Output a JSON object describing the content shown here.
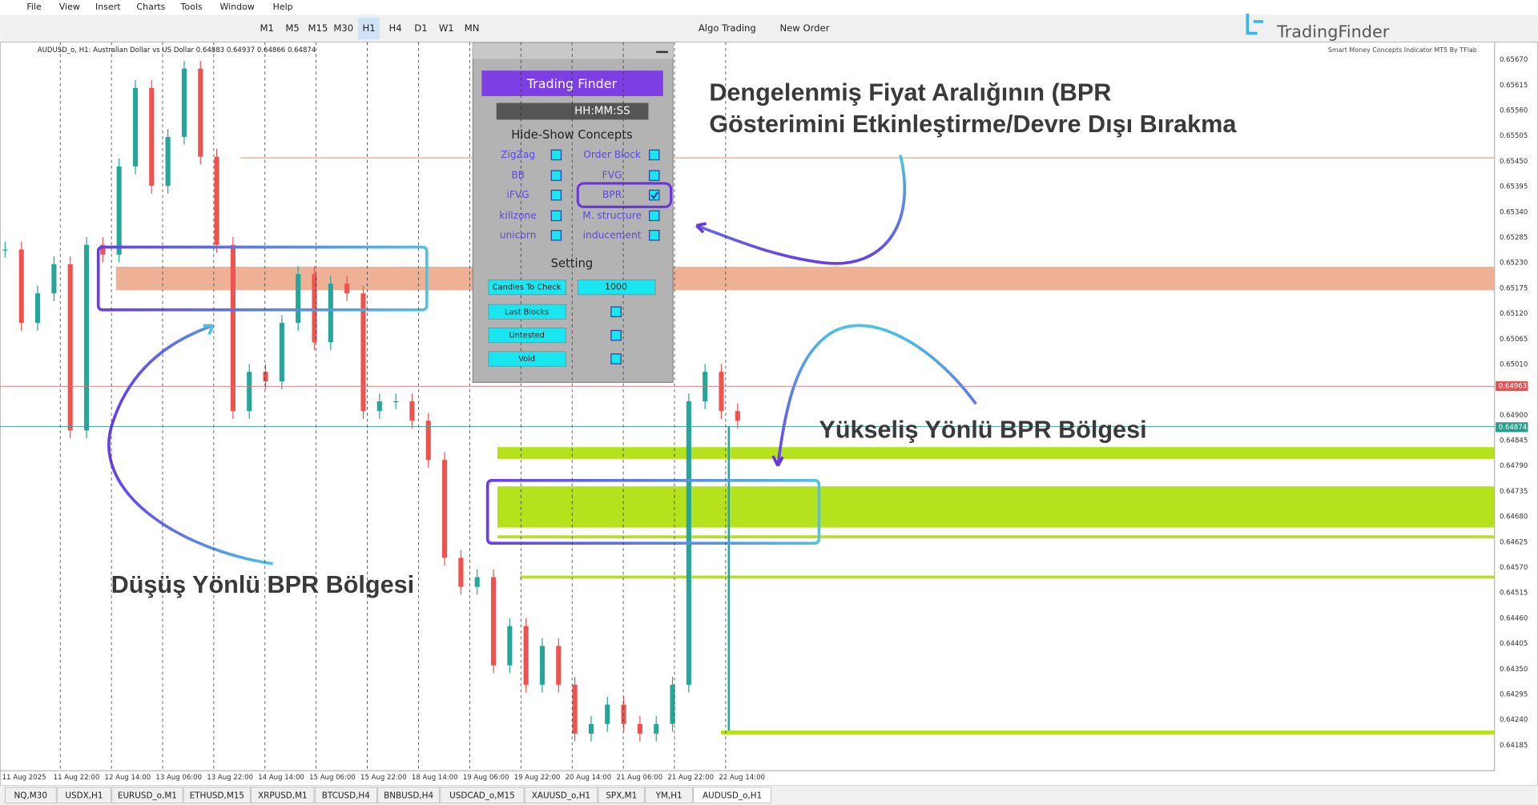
{
  "menu": [
    "File",
    "View",
    "Insert",
    "Charts",
    "Tools",
    "Window",
    "Help"
  ],
  "toolbar": {
    "timeframes": [
      "M1",
      "M5",
      "M15",
      "M30",
      "H1",
      "H4",
      "D1",
      "W1",
      "MN"
    ],
    "algo_trading": "Algo Trading",
    "new_order": "New Order"
  },
  "brand": {
    "logo": "TradingFinder",
    "caption": "Smart Money Concepts Indicator MT5 By TFlab"
  },
  "chart": {
    "info": "AUDUSD_o, H1:  Australian Dollar vs US Dollar  0.64883 0.64937 0.64866 0.64874",
    "price_labels": [
      "0.65670",
      "0.65615",
      "0.65560",
      "0.65505",
      "0.65450",
      "0.65395",
      "0.65340",
      "0.65285",
      "0.65230",
      "0.65175",
      "0.65120",
      "0.65065",
      "0.65010",
      "0.64900",
      "0.64845",
      "0.64790",
      "0.64735",
      "0.64680",
      "0.64625",
      "0.64570",
      "0.64515",
      "0.64460",
      "0.64405",
      "0.64350",
      "0.64295",
      "0.64240",
      "0.64185"
    ],
    "bid_label": "0.64963",
    "last_label": "0.64874",
    "time_labels": [
      "11 Aug 2025",
      "11 Aug 22:00",
      "12 Aug 14:00",
      "13 Aug 06:00",
      "13 Aug 22:00",
      "14 Aug 14:00",
      "15 Aug 06:00",
      "15 Aug 22:00",
      "18 Aug 14:00",
      "19 Aug 06:00",
      "19 Aug 22:00",
      "20 Aug 14:00",
      "21 Aug 06:00",
      "21 Aug 22:00",
      "22 Aug 14:00"
    ],
    "candles": [
      0.65259,
      0.651,
      0.65164,
      0.65227,
      0.64867,
      0.65269,
      0.65248,
      0.65439,
      0.65609,
      0.65397,
      0.65503,
      0.65651,
      0.6546,
      0.65269,
      0.64909,
      0.64994,
      0.64973,
      0.651,
      0.65206,
      0.65058,
      0.65185,
      0.65164,
      0.64909,
      0.6493,
      0.6493,
      0.64888,
      0.64803,
      0.64591,
      0.64528,
      0.64549,
      0.64358,
      0.64443,
      0.64316,
      0.644,
      0.64316,
      0.6421,
      0.64231,
      0.64273,
      0.64231,
      0.6421,
      0.64231,
      0.64316,
      0.6493,
      0.64994,
      0.64909,
      0.64888
    ]
  },
  "panel": {
    "logo": "Trading Finder",
    "clock": "HH:MM:SS",
    "concepts_title": "Hide-Show Concepts",
    "concepts": [
      {
        "label": "ZigZag",
        "checked": false
      },
      {
        "label": "Order Block",
        "checked": false
      },
      {
        "label": "BB",
        "checked": false
      },
      {
        "label": "FVG",
        "checked": false
      },
      {
        "label": "iFVG",
        "checked": false
      },
      {
        "label": "BPR",
        "checked": true
      },
      {
        "label": "killzone",
        "checked": false
      },
      {
        "label": "M. structure",
        "checked": false
      },
      {
        "label": "unicorn",
        "checked": false
      },
      {
        "label": "inducement",
        "checked": false
      }
    ],
    "setting_title": "Setting",
    "settings": [
      {
        "label": "Candles To Check",
        "value": "1000"
      },
      {
        "label": "Last Blocks",
        "checked": false
      },
      {
        "label": "Untested",
        "checked": false
      },
      {
        "label": "Void",
        "checked": false
      }
    ]
  },
  "annotations": {
    "toggle_line1": "Dengelenmiş Fiyat Aralığının (BPR",
    "toggle_line2": "Gösterimini Etkinleştirme/Devre Dışı Bırakma",
    "bullish": "Yükseliş Yönlü BPR Bölgesi",
    "bearish": "Düşüş Yönlü BPR Bölgesi"
  },
  "tabs": [
    "NQ,M30",
    "USDX,H1",
    "EURUSD_o,M1",
    "ETHUSD,M15",
    "XRPUSD,M1",
    "BTCUSD,H4",
    "BNBUSD,H4",
    "USDCAD_o,M15",
    "XAUUSD_o,H1",
    "SPX,M1",
    "YM,H1",
    "AUDUSD_o,H1"
  ]
}
